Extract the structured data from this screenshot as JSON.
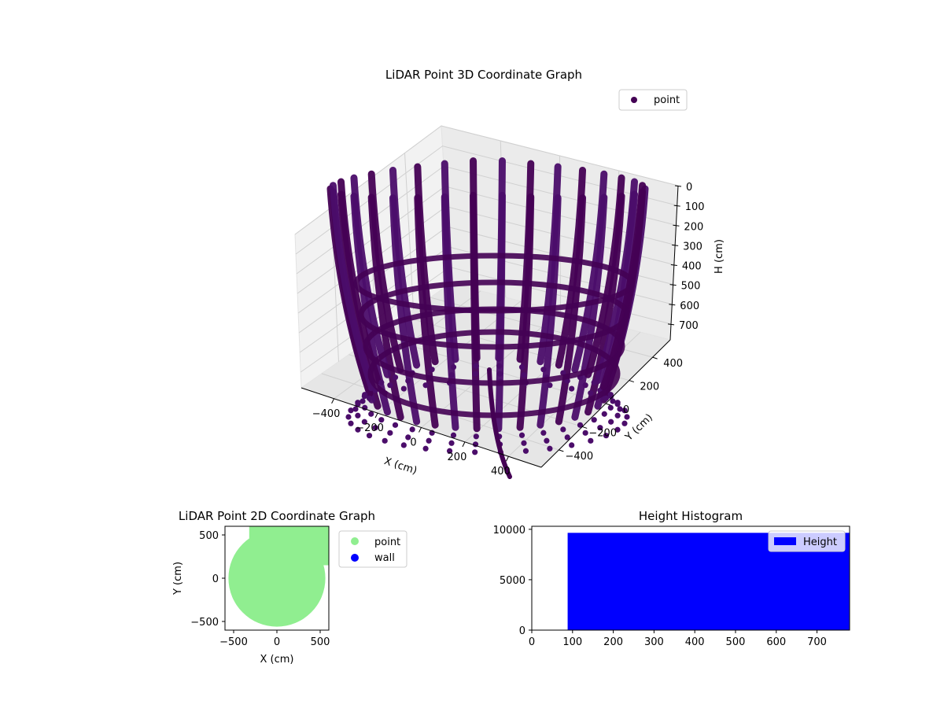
{
  "colors": {
    "point3d": "#440154",
    "point3d_alt": "#4b0d6a",
    "point2d": "#90ee90",
    "wall": "#0000ff",
    "hist": "#0000ff",
    "pane": "#f2f2f2",
    "grid": "#d0d0d0"
  },
  "chart_data": [
    {
      "type": "scatter",
      "title": "LiDAR Point 3D Coordinate Graph",
      "xlabel": "X (cm)",
      "ylabel": "Y (cm)",
      "zlabel": "H (cm)",
      "xlim": [
        -550,
        550
      ],
      "ylim": [
        -550,
        550
      ],
      "zlim": [
        0,
        780
      ],
      "z_inverted": true,
      "xticks": [
        -400,
        -200,
        0,
        200,
        400
      ],
      "yticks": [
        -400,
        -200,
        0,
        200,
        400
      ],
      "zticks": [
        0,
        100,
        200,
        300,
        400,
        500,
        600,
        700
      ],
      "legend": {
        "position": "top-right",
        "entries": [
          "point"
        ]
      },
      "series": [
        {
          "name": "point",
          "description_points": "dense arc-shaped point streaks hanging from the top around the sensor"
        }
      ]
    },
    {
      "type": "scatter",
      "title": "LiDAR Point 2D Coordinate Graph",
      "xlabel": "X (cm)",
      "ylabel": "Y (cm)",
      "xlim": [
        -600,
        600
      ],
      "ylim": [
        -600,
        600
      ],
      "xticks": [
        -500,
        0,
        500
      ],
      "yticks": [
        -500,
        0,
        500
      ],
      "legend": {
        "position": "outside-right",
        "entries": [
          "point",
          "wall"
        ]
      },
      "series": [
        {
          "name": "point",
          "shape": "near-circular filled cloud",
          "center": [
            0,
            0
          ],
          "radius": 560
        },
        {
          "name": "wall",
          "values": []
        }
      ]
    },
    {
      "type": "bar",
      "title": "Height Histogram",
      "xlim": [
        0,
        780
      ],
      "ylim": [
        0,
        10300
      ],
      "xticks": [
        0,
        100,
        200,
        300,
        400,
        500,
        600,
        700
      ],
      "yticks": [
        0,
        5000,
        10000
      ],
      "legend": {
        "position": "top-right",
        "entries": [
          "Height"
        ]
      },
      "series": [
        {
          "name": "Height",
          "bins": [
            {
              "from": 88,
              "to": 780,
              "count": 9650
            }
          ]
        }
      ]
    }
  ]
}
